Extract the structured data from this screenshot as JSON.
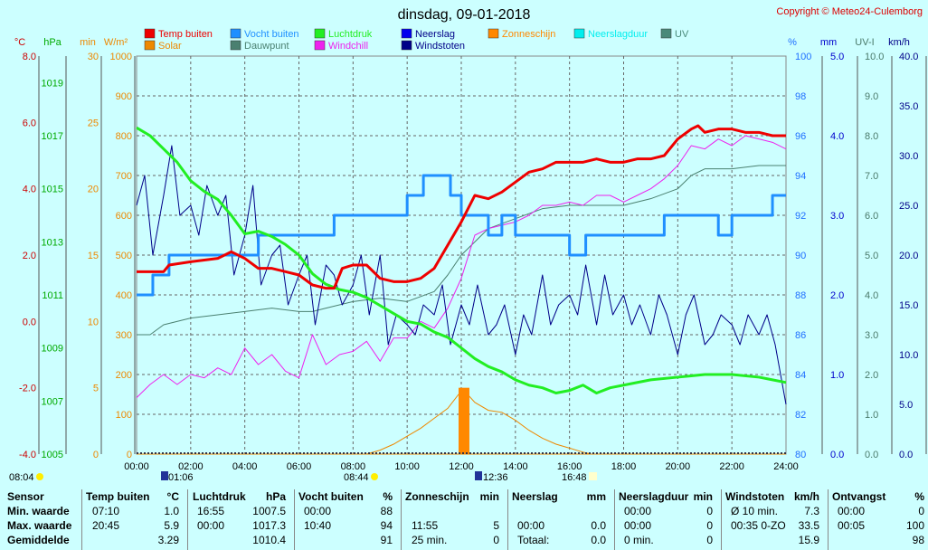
{
  "title": "dinsdag, 09-01-2018",
  "copyright": "Copyright © Meteo24-Culemborg",
  "colors": {
    "temp": "#ee0000",
    "vocht": "#1f8fff",
    "luchtdruk": "#22ee22",
    "neerslag": "#0000ee",
    "zonneschijn": "#ff8800",
    "neerslagduur": "#00eeee",
    "uv": "#4a8a7a",
    "solar": "#ee8800",
    "dauwpunt": "#4a8070",
    "windchill": "#ee22ee",
    "windstoten": "#000088",
    "plot_bg": "#ccffff"
  },
  "legend": [
    {
      "label": "Temp buiten",
      "color": "#ee0000",
      "col": 0,
      "row": 0
    },
    {
      "label": "Vocht buiten",
      "color": "#1f8fff",
      "col": 1,
      "row": 0
    },
    {
      "label": "Luchtdruk",
      "color": "#22ee22",
      "col": 2,
      "row": 0
    },
    {
      "label": "Neerslag",
      "color": "#0000ee",
      "col": 3,
      "row": 0
    },
    {
      "label": "Zonneschijn",
      "color": "#ff8800",
      "col": 4,
      "row": 0
    },
    {
      "label": "Neerslagduur",
      "color": "#00eeee",
      "col": 5,
      "row": 0
    },
    {
      "label": "UV",
      "color": "#4a8a7a",
      "col": 6,
      "row": 0
    },
    {
      "label": "Solar",
      "color": "#ee8800",
      "col": 0,
      "row": 1
    },
    {
      "label": "Dauwpunt",
      "color": "#4a8070",
      "col": 1,
      "row": 1
    },
    {
      "label": "Windchill",
      "color": "#ee22ee",
      "col": 2,
      "row": 1
    },
    {
      "label": "Windstoten",
      "color": "#000088",
      "col": 3,
      "row": 1
    }
  ],
  "axis_units": {
    "temp": "°C",
    "hpa": "hPa",
    "min": "min",
    "solar": "W/m²",
    "pct": "%",
    "mm": "mm",
    "uv": "UV-I",
    "kmh": "km/h"
  },
  "sun_events": {
    "dawn": "08:04",
    "sunrise": "01:06",
    "solar_noon_left": "08:44",
    "noon": "12:36",
    "sunset": "16:48"
  },
  "chart_data": {
    "type": "line",
    "title": "dinsdag, 09-01-2018",
    "x_range": [
      0,
      24
    ],
    "x_ticks": [
      "00:00",
      "02:00",
      "04:00",
      "06:00",
      "08:00",
      "10:00",
      "12:00",
      "14:00",
      "16:00",
      "18:00",
      "20:00",
      "22:00",
      "24:00"
    ],
    "axes": {
      "temp": {
        "range": [
          -4,
          8
        ],
        "ticks": [
          "-4.0",
          "-2.0",
          "0.0",
          "2.0",
          "4.0",
          "6.0",
          "8.0"
        ]
      },
      "hpa": {
        "range": [
          1005,
          1020
        ],
        "ticks": [
          "1005",
          "1007",
          "1009",
          "1011",
          "1013",
          "1015",
          "1017",
          "1019"
        ]
      },
      "min": {
        "range": [
          0,
          30
        ],
        "ticks": [
          "0",
          "5",
          "10",
          "15",
          "20",
          "25",
          "30"
        ]
      },
      "solar": {
        "range": [
          0,
          1000
        ],
        "ticks": [
          "0",
          "100",
          "200",
          "300",
          "400",
          "500",
          "600",
          "700",
          "800",
          "900",
          "1000"
        ]
      },
      "pct": {
        "range": [
          80,
          100
        ],
        "ticks": [
          "80",
          "82",
          "84",
          "86",
          "88",
          "90",
          "92",
          "94",
          "96",
          "98",
          "100"
        ]
      },
      "mm": {
        "range": [
          0,
          5
        ],
        "ticks": [
          "0.0",
          "1.0",
          "2.0",
          "3.0",
          "4.0",
          "5.0"
        ]
      },
      "uv": {
        "range": [
          0,
          10
        ],
        "ticks": [
          "0.0",
          "1.0",
          "2.0",
          "3.0",
          "4.0",
          "5.0",
          "6.0",
          "7.0",
          "8.0",
          "9.0",
          "10.0"
        ]
      },
      "kmh": {
        "range": [
          0,
          40
        ],
        "ticks": [
          "0.0",
          "5.0",
          "10.0",
          "15.0",
          "20.0",
          "25.0",
          "30.0",
          "35.0",
          "40.0"
        ]
      }
    },
    "series": [
      {
        "name": "Temp buiten",
        "axis": "temp",
        "x": [
          0,
          0.5,
          1.0,
          1.2,
          2.0,
          3.0,
          3.5,
          4.0,
          4.5,
          5.0,
          5.5,
          6.0,
          6.5,
          7.0,
          7.3,
          7.6,
          8.0,
          8.5,
          9.0,
          9.5,
          10.0,
          10.5,
          11.0,
          11.5,
          12.0,
          12.5,
          13.0,
          13.5,
          14.0,
          14.5,
          15.0,
          15.5,
          16.0,
          16.5,
          17.0,
          17.5,
          18.0,
          18.5,
          19.0,
          19.5,
          20.0,
          20.5,
          20.75,
          21.0,
          21.5,
          22.0,
          22.5,
          23.0,
          23.5,
          24.0
        ],
        "y": [
          1.5,
          1.5,
          1.5,
          1.7,
          1.8,
          1.9,
          2.1,
          1.9,
          1.6,
          1.6,
          1.5,
          1.4,
          1.1,
          1.0,
          1.0,
          1.6,
          1.7,
          1.7,
          1.3,
          1.2,
          1.2,
          1.3,
          1.6,
          2.3,
          3.0,
          3.8,
          3.7,
          3.9,
          4.2,
          4.5,
          4.6,
          4.8,
          4.8,
          4.8,
          4.9,
          4.8,
          4.8,
          4.9,
          4.9,
          5.0,
          5.5,
          5.8,
          5.9,
          5.7,
          5.8,
          5.8,
          5.7,
          5.7,
          5.6,
          5.6
        ]
      },
      {
        "name": "Vocht buiten",
        "axis": "pct",
        "x": [
          0,
          0.5,
          0.6,
          1.0,
          1.2,
          2.0,
          3.0,
          4.0,
          4.5,
          5.0,
          5.5,
          6.0,
          6.5,
          7.0,
          7.3,
          8.0,
          8.5,
          9.0,
          9.5,
          10.0,
          10.5,
          10.6,
          11.0,
          11.6,
          12.0,
          12.5,
          13.0,
          13.5,
          14.0,
          14.5,
          15.0,
          16.0,
          16.5,
          16.6,
          17.0,
          18.0,
          19.0,
          19.5,
          20.0,
          20.5,
          21.0,
          21.5,
          22.0,
          22.5,
          23.0,
          23.5,
          24.0
        ],
        "y": [
          88,
          88,
          89,
          89,
          90,
          90,
          90,
          90,
          91,
          91,
          91,
          91,
          91,
          91,
          92,
          92,
          92,
          92,
          92,
          93,
          93,
          94,
          94,
          93,
          92,
          92,
          91,
          92,
          91,
          91,
          91,
          90,
          90,
          91,
          91,
          91,
          91,
          92,
          92,
          92,
          92,
          91,
          92,
          92,
          92,
          93,
          93
        ]
      },
      {
        "name": "Luchtdruk",
        "axis": "hpa",
        "x": [
          0,
          0.5,
          1.0,
          1.5,
          2.0,
          2.5,
          3.0,
          3.5,
          4.0,
          4.5,
          5.0,
          5.5,
          6.0,
          6.5,
          7.0,
          7.5,
          8.0,
          8.5,
          9.0,
          9.5,
          10.0,
          10.5,
          11.0,
          11.5,
          12.0,
          12.5,
          13.0,
          13.5,
          14.0,
          14.5,
          15.0,
          15.5,
          16.0,
          16.5,
          17.0,
          17.5,
          18.0,
          19.0,
          20.0,
          21.0,
          22.0,
          23.0,
          23.5,
          24.0
        ],
        "y": [
          1017.3,
          1017.0,
          1016.5,
          1016.0,
          1015.3,
          1014.9,
          1014.6,
          1014.0,
          1013.3,
          1013.4,
          1013.2,
          1012.9,
          1012.5,
          1011.8,
          1011.4,
          1011.2,
          1011.1,
          1010.9,
          1010.6,
          1010.3,
          1010.0,
          1009.9,
          1009.6,
          1009.4,
          1009.0,
          1008.6,
          1008.3,
          1008.1,
          1007.8,
          1007.6,
          1007.5,
          1007.3,
          1007.4,
          1007.6,
          1007.3,
          1007.5,
          1007.6,
          1007.8,
          1007.9,
          1008.0,
          1008.0,
          1007.9,
          1007.8,
          1007.7
        ]
      },
      {
        "name": "Dauwpunt",
        "axis": "temp",
        "x": [
          0,
          0.5,
          1.0,
          2.0,
          3.0,
          4.0,
          5.0,
          6.0,
          6.5,
          7.0,
          8.0,
          9.0,
          10.0,
          11.0,
          11.5,
          12.0,
          12.5,
          13.0,
          14.0,
          15.0,
          16.0,
          17.0,
          18.0,
          19.0,
          20.0,
          20.5,
          21.0,
          22.0,
          23.0,
          24.0
        ],
        "y": [
          -0.4,
          -0.4,
          -0.1,
          0.1,
          0.2,
          0.3,
          0.4,
          0.3,
          0.3,
          0.4,
          0.6,
          0.7,
          0.6,
          0.9,
          1.4,
          2.0,
          2.4,
          2.8,
          3.1,
          3.4,
          3.5,
          3.5,
          3.5,
          3.7,
          4.0,
          4.4,
          4.6,
          4.6,
          4.7,
          4.7
        ]
      },
      {
        "name": "Windchill",
        "axis": "temp",
        "x": [
          0,
          0.5,
          1.0,
          1.5,
          2.0,
          2.5,
          3.0,
          3.5,
          4.0,
          4.5,
          5.0,
          5.5,
          6.0,
          6.5,
          7.0,
          7.5,
          8.0,
          8.5,
          9.0,
          9.5,
          10.0,
          10.5,
          11.0,
          11.5,
          12.0,
          12.5,
          13.0,
          13.5,
          14.0,
          14.5,
          15.0,
          15.5,
          16.0,
          16.5,
          17.0,
          17.5,
          18.0,
          18.5,
          19.0,
          19.5,
          20.0,
          20.5,
          21.0,
          21.5,
          22.0,
          22.5,
          23.0,
          23.5,
          24.0
        ],
        "y": [
          -2.3,
          -1.9,
          -1.6,
          -1.9,
          -1.6,
          -1.7,
          -1.4,
          -1.6,
          -0.8,
          -1.3,
          -1.0,
          -1.5,
          -1.7,
          -0.4,
          -1.3,
          -1.0,
          -0.9,
          -0.6,
          -1.2,
          -0.5,
          -0.5,
          0.0,
          -0.2,
          0.4,
          1.3,
          2.6,
          2.8,
          2.9,
          3.0,
          3.2,
          3.5,
          3.5,
          3.6,
          3.5,
          3.8,
          3.8,
          3.6,
          3.8,
          4.0,
          4.3,
          4.7,
          5.3,
          5.2,
          5.5,
          5.3,
          5.6,
          5.5,
          5.4,
          5.2
        ]
      },
      {
        "name": "Windstoten",
        "axis": "kmh",
        "x": [
          0,
          0.3,
          0.6,
          1.0,
          1.3,
          1.6,
          2.0,
          2.3,
          2.6,
          3.0,
          3.3,
          3.6,
          4.0,
          4.3,
          4.6,
          5.0,
          5.3,
          5.6,
          6.0,
          6.3,
          6.6,
          7.0,
          7.3,
          7.6,
          8.0,
          8.3,
          8.6,
          9.0,
          9.3,
          9.6,
          10.0,
          10.3,
          10.6,
          11.0,
          11.3,
          11.6,
          12.0,
          12.3,
          12.6,
          13.0,
          13.3,
          13.6,
          14.0,
          14.3,
          14.6,
          15.0,
          15.3,
          15.6,
          16.0,
          16.3,
          16.6,
          17.0,
          17.3,
          17.6,
          18.0,
          18.3,
          18.6,
          19.0,
          19.3,
          19.6,
          20.0,
          20.3,
          20.6,
          21.0,
          21.3,
          21.6,
          22.0,
          22.3,
          22.6,
          23.0,
          23.3,
          23.6,
          24.0
        ],
        "y": [
          25,
          28,
          20,
          26,
          31,
          24,
          25,
          22,
          27,
          24,
          26,
          18,
          22,
          27,
          17,
          20,
          21,
          15,
          18,
          20,
          13,
          19,
          18,
          15,
          17,
          20,
          14,
          20,
          11,
          14,
          13,
          12,
          15,
          14,
          17,
          11,
          15,
          13,
          17,
          12,
          13,
          15,
          10,
          14,
          12,
          18,
          13,
          15,
          16,
          14,
          19,
          13,
          18,
          14,
          16,
          13,
          15,
          12,
          16,
          14,
          10,
          14,
          16,
          11,
          12,
          14,
          13,
          11,
          14,
          12,
          14,
          11,
          5
        ]
      },
      {
        "name": "Solar",
        "axis": "solar",
        "x": [
          0,
          8.5,
          9.0,
          9.5,
          10.0,
          10.5,
          11.0,
          11.5,
          11.9,
          12.1,
          12.5,
          13.0,
          13.5,
          14.0,
          14.5,
          15.0,
          15.5,
          16.0,
          16.5,
          16.8,
          24.0
        ],
        "y": [
          0,
          0,
          10,
          25,
          45,
          65,
          90,
          115,
          150,
          160,
          130,
          110,
          105,
          85,
          60,
          40,
          25,
          15,
          5,
          0,
          0
        ]
      },
      {
        "name": "Zonneschijn",
        "axis": "min",
        "type": "bar",
        "x": [
          11.9,
          12.3
        ],
        "y": [
          5,
          5
        ]
      }
    ]
  },
  "table": {
    "headers": [
      {
        "a": "Sensor",
        "b": ""
      },
      {
        "a": "Temp buiten",
        "b": "°C"
      },
      {
        "a": "Luchtdruk",
        "b": "hPa"
      },
      {
        "a": "Vocht buiten",
        "b": "%"
      },
      {
        "a": "Zonneschijn",
        "b": "min"
      },
      {
        "a": "Neerslag",
        "b": "mm"
      },
      {
        "a": "Neerslagduur",
        "b": "min"
      },
      {
        "a": "Windstoten",
        "b": "km/h"
      },
      {
        "a": "Ontvangst",
        "b": "%"
      }
    ],
    "rows": [
      {
        "label": "Min. waarde",
        "cells": [
          [
            "07:10",
            "1.0"
          ],
          [
            "16:55",
            "1007.5"
          ],
          [
            "00:00",
            "88"
          ],
          [
            "",
            ""
          ],
          [
            "",
            ""
          ],
          [
            "00:00",
            "0"
          ],
          [
            "Ø 10 min.",
            "7.3"
          ],
          [
            "00:00",
            "0"
          ]
        ]
      },
      {
        "label": "Max. waarde",
        "cells": [
          [
            "20:45",
            "5.9"
          ],
          [
            "00:00",
            "1017.3"
          ],
          [
            "10:40",
            "94"
          ],
          [
            "11:55",
            "5"
          ],
          [
            "00:00",
            "0.0"
          ],
          [
            "00:00",
            "0"
          ],
          [
            "00:35  0-ZO",
            "33.5"
          ],
          [
            "00:05",
            "100"
          ]
        ]
      },
      {
        "label": "Gemiddelde",
        "cells": [
          [
            "",
            "3.29"
          ],
          [
            "",
            "1010.4"
          ],
          [
            "",
            "91"
          ],
          [
            "25 min.",
            "0"
          ],
          [
            "Totaal:",
            "0.0"
          ],
          [
            "0 min.",
            "0"
          ],
          [
            "",
            "15.9"
          ],
          [
            "",
            "98"
          ]
        ]
      }
    ]
  }
}
